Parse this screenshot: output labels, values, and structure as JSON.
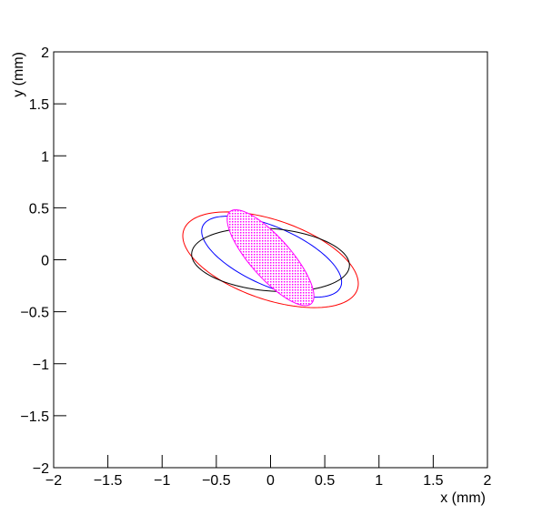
{
  "chart_data": {
    "type": "ellipse",
    "xlabel": "x (mm)",
    "ylabel": "y (mm)",
    "xlim": [
      -2,
      2
    ],
    "ylim": [
      -2,
      2
    ],
    "xticks": [
      {
        "value": -2,
        "label": "−2"
      },
      {
        "value": -1.5,
        "label": "−1.5"
      },
      {
        "value": -1,
        "label": "−1"
      },
      {
        "value": -0.5,
        "label": "−0.5"
      },
      0,
      0.5,
      1,
      1.5,
      2
    ],
    "yticks": [
      {
        "value": -2,
        "label": "−2"
      },
      {
        "value": -1.5,
        "label": "−1.5"
      },
      {
        "value": -1,
        "label": "−1"
      },
      {
        "value": -0.5,
        "label": "−0.5"
      },
      0,
      0.5,
      1,
      1.5,
      2
    ],
    "ellipses": [
      {
        "color": "#ff0000",
        "cx": 0,
        "cy": 0,
        "rx": 0.85,
        "ry": 0.38,
        "angle": -20,
        "filled": false
      },
      {
        "color": "#0000ff",
        "cx": 0.01,
        "cy": 0.03,
        "rx": 0.7,
        "ry": 0.28,
        "angle": -25,
        "filled": false
      },
      {
        "color": "#000000",
        "cx": 0,
        "cy": 0,
        "rx": 0.73,
        "ry": 0.3,
        "angle": -5,
        "filled": false
      },
      {
        "color": "#ff00ff",
        "cx": 0,
        "cy": 0.02,
        "rx": 0.58,
        "ry": 0.19,
        "angle": -50,
        "filled": true
      }
    ]
  }
}
